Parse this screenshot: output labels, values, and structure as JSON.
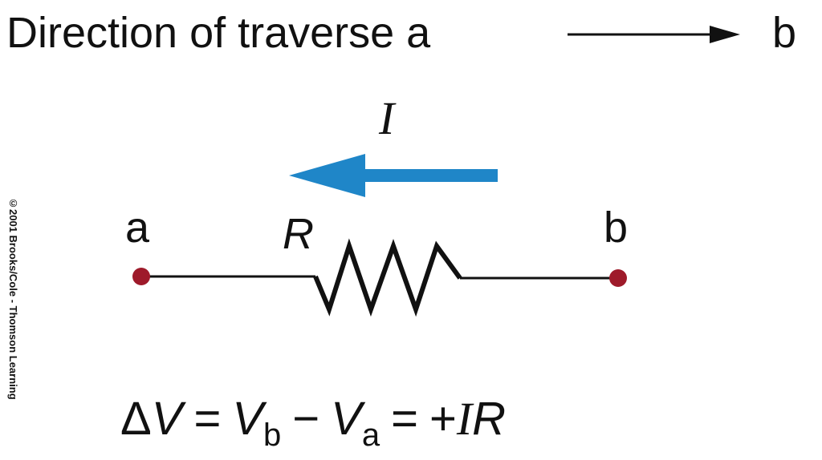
{
  "header": {
    "text": "Direction of traverse a",
    "end_label": "b"
  },
  "copyright": "©2001 Brooks/Cole - Thomson Learning",
  "circuit": {
    "current_label": "I",
    "resistor_label": "R",
    "node_a_label": "a",
    "node_b_label": "b",
    "current_arrow_color": "#1f86c8",
    "node_color": "#9e1a2a"
  },
  "equation": {
    "delta": "Δ",
    "v1": "V",
    "eq1": "=",
    "vb": "V",
    "vb_sub": "b",
    "minus": "−",
    "va": "V",
    "va_sub": "a",
    "eq2": "=",
    "plus": "+",
    "i": "I",
    "r": "R"
  }
}
